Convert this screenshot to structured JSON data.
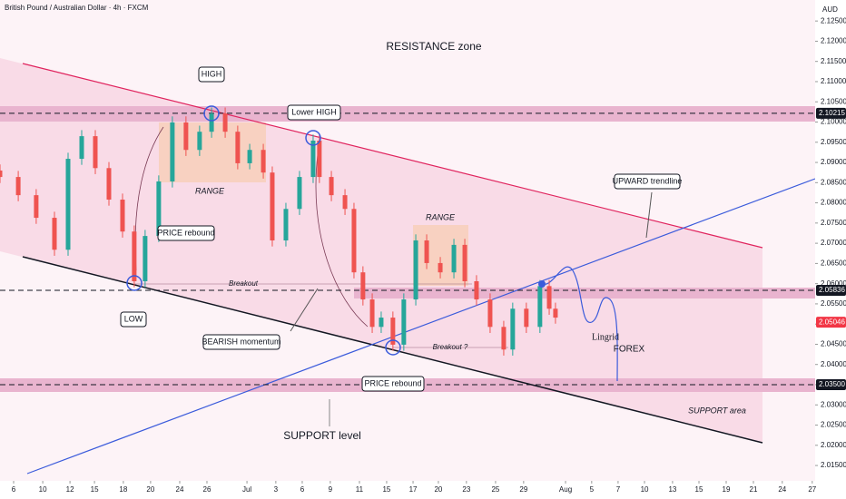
{
  "chart_data": {
    "type": "candlestick",
    "title": "British Pound / Australian Dollar · 4h · FXCM",
    "currency": "AUD",
    "x": [
      0,
      0.67,
      1.33,
      2,
      2.5,
      3,
      3.5,
      4,
      4.5,
      4.93,
      5.33,
      5.83,
      6.33,
      6.83,
      7.33,
      7.77,
      8.27,
      8.73,
      9.17,
      9.67,
      10,
      10.5,
      11,
      11.5,
      11.73,
      12.17,
      12.67,
      13,
      13.33,
      13.67,
      14,
      14.43,
      14.83,
      15.27,
      15.67,
      16.17,
      16.67,
      17.07,
      17.5,
      18,
      18.5,
      18.83,
      19.33,
      19.83,
      20.17,
      20.4
    ],
    "open": [
      2.088,
      2.0864,
      2.0819,
      2.0763,
      2.0684,
      2.0909,
      2.0965,
      2.0886,
      2.0808,
      2.0729,
      2.0606,
      2.0718,
      2.0853,
      2.0999,
      2.0931,
      2.0976,
      2.1021,
      2.0976,
      2.0898,
      2.0931,
      2.0875,
      2.0707,
      2.0785,
      2.0864,
      2.0954,
      2.0864,
      2.0819,
      2.0785,
      2.0628,
      2.0561,
      2.0493,
      2.0516,
      2.0449,
      2.0561,
      2.0707,
      2.0651,
      2.0628,
      2.0696,
      2.0606,
      2.0561,
      2.0493,
      2.0437,
      2.0538,
      2.0493,
      2.0594,
      2.0538
    ],
    "high": [
      2.0895,
      2.0879,
      2.0834,
      2.0778,
      2.0924,
      2.098,
      2.098,
      2.0901,
      2.0823,
      2.0744,
      2.0733,
      2.0868,
      2.1014,
      2.1014,
      2.0991,
      2.1036,
      2.1036,
      2.0991,
      2.0946,
      2.0946,
      2.089,
      2.08,
      2.0879,
      2.0969,
      2.0969,
      2.0879,
      2.0834,
      2.08,
      2.0643,
      2.0576,
      2.0531,
      2.0531,
      2.0576,
      2.0722,
      2.0722,
      2.0666,
      2.0711,
      2.0711,
      2.0621,
      2.0576,
      2.0508,
      2.0553,
      2.0553,
      2.0609,
      2.0609,
      2.0553
    ],
    "low": [
      2.0849,
      2.0804,
      2.0748,
      2.0669,
      2.0669,
      2.0894,
      2.0871,
      2.0793,
      2.0714,
      2.0591,
      2.0591,
      2.0703,
      2.0838,
      2.0916,
      2.0916,
      2.0961,
      2.0961,
      2.0883,
      2.0883,
      2.086,
      2.0692,
      2.0692,
      2.077,
      2.0849,
      2.0849,
      2.0804,
      2.077,
      2.0613,
      2.0546,
      2.0478,
      2.0478,
      2.0434,
      2.0434,
      2.0546,
      2.0636,
      2.0613,
      2.0613,
      2.0591,
      2.0546,
      2.0478,
      2.0422,
      2.0422,
      2.0478,
      2.0478,
      2.0523,
      2.0501
    ],
    "close": [
      2.0864,
      2.0819,
      2.0763,
      2.0684,
      2.0909,
      2.0965,
      2.0886,
      2.0808,
      2.0729,
      2.0606,
      2.0718,
      2.0853,
      2.0999,
      2.0931,
      2.0976,
      2.1021,
      2.0976,
      2.0898,
      2.0931,
      2.0875,
      2.0707,
      2.0785,
      2.0864,
      2.0954,
      2.0864,
      2.0819,
      2.0785,
      2.0628,
      2.0561,
      2.0493,
      2.0516,
      2.0449,
      2.0561,
      2.0707,
      2.0651,
      2.0628,
      2.0696,
      2.0606,
      2.0561,
      2.0493,
      2.0437,
      2.0538,
      2.0493,
      2.0594,
      2.0538,
      2.0516
    ],
    "up_color": "#26a69a",
    "down_color": "#ef5350",
    "ylim": [
      2.0112,
      2.1302
    ],
    "yticks": [
      {
        "value": 2.125,
        "label": "2.12500"
      },
      {
        "value": 2.12,
        "label": "2.12000"
      },
      {
        "value": 2.115,
        "label": "2.11500"
      },
      {
        "value": 2.11,
        "label": "2.11000"
      },
      {
        "value": 2.105,
        "label": "2.10500"
      },
      {
        "value": 2.1,
        "label": "2.10000"
      },
      {
        "value": 2.095,
        "label": "2.09500"
      },
      {
        "value": 2.09,
        "label": "2.09000"
      },
      {
        "value": 2.085,
        "label": "2.08500"
      },
      {
        "value": 2.08,
        "label": "2.08000"
      },
      {
        "value": 2.075,
        "label": "2.07500"
      },
      {
        "value": 2.07,
        "label": "2.07000"
      },
      {
        "value": 2.065,
        "label": "2.06500"
      },
      {
        "value": 2.06,
        "label": "2.06000"
      },
      {
        "value": 2.055,
        "label": "2.05500"
      },
      {
        "value": 2.05,
        "label": "2.05000"
      },
      {
        "value": 2.045,
        "label": "2.04500"
      },
      {
        "value": 2.04,
        "label": "2.04000"
      },
      {
        "value": 2.035,
        "label": "2.03500"
      },
      {
        "value": 2.03,
        "label": "2.03000"
      },
      {
        "value": 2.025,
        "label": "2.02500"
      },
      {
        "value": 2.02,
        "label": "2.02000"
      },
      {
        "value": 2.015,
        "label": "2.01500"
      }
    ],
    "price_labels": [
      {
        "value": 2.10215,
        "label": "2.10215",
        "color": "#131722"
      },
      {
        "value": 2.05836,
        "label": "2.05836",
        "color": "#131722"
      },
      {
        "value": 2.05046,
        "label": "2.05046",
        "color": "#f23645"
      },
      {
        "value": 2.035,
        "label": "2.03500",
        "color": "#131722"
      }
    ],
    "xlim": [
      0,
      29.87
    ],
    "xticks": [
      {
        "value": 0.5,
        "label": "6"
      },
      {
        "value": 1.57,
        "label": "10"
      },
      {
        "value": 2.57,
        "label": "12"
      },
      {
        "value": 3.47,
        "label": "15"
      },
      {
        "value": 4.53,
        "label": "18"
      },
      {
        "value": 5.53,
        "label": "20"
      },
      {
        "value": 6.6,
        "label": "24"
      },
      {
        "value": 7.6,
        "label": "26"
      },
      {
        "value": 9.07,
        "label": "Jul"
      },
      {
        "value": 10.13,
        "label": "3"
      },
      {
        "value": 11.1,
        "label": "6"
      },
      {
        "value": 12.13,
        "label": "9"
      },
      {
        "value": 13.2,
        "label": "11"
      },
      {
        "value": 14.2,
        "label": "15"
      },
      {
        "value": 15.17,
        "label": "17"
      },
      {
        "value": 16.1,
        "label": "20"
      },
      {
        "value": 17.13,
        "label": "23"
      },
      {
        "value": 18.2,
        "label": "25"
      },
      {
        "value": 19.23,
        "label": "29"
      },
      {
        "value": 20.77,
        "label": "Aug"
      },
      {
        "value": 21.73,
        "label": "5"
      },
      {
        "value": 22.7,
        "label": "7"
      },
      {
        "value": 23.67,
        "label": "10"
      },
      {
        "value": 24.7,
        "label": "13"
      },
      {
        "value": 25.67,
        "label": "15"
      },
      {
        "value": 26.67,
        "label": "19"
      },
      {
        "value": 27.67,
        "label": "21"
      },
      {
        "value": 28.73,
        "label": "24"
      },
      {
        "value": 29.83,
        "label": "27"
      }
    ],
    "annotations": [
      "RESISTANCE zone",
      "HIGH",
      "Lower HIGH",
      "RANGE",
      "RANGE",
      "PRICE rebound",
      "LOW",
      "BEARISH momentum",
      "Breakout",
      "Breakout ?",
      "PRICE rebound",
      "UPWARD trendline",
      "SUPPORT area",
      "SUPPORT level",
      "Lingrid",
      "FOREX"
    ]
  }
}
